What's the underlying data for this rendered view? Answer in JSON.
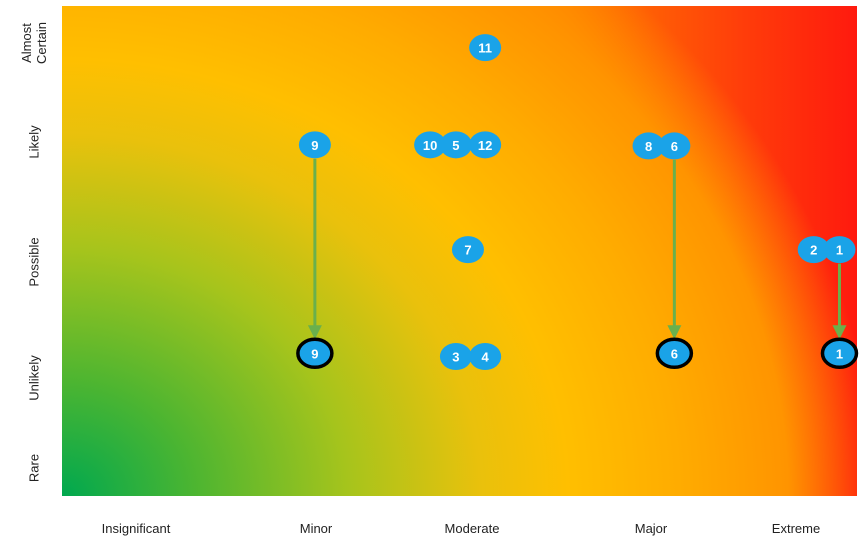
{
  "chart_data": {
    "type": "heatmap",
    "title": "",
    "xlabel": "",
    "ylabel": "",
    "x_categories": [
      "Insignificant",
      "Minor",
      "Moderate",
      "Major",
      "Extreme"
    ],
    "y_categories": [
      "Rare",
      "Unlikely",
      "Possible",
      "Likely",
      "Almost Certain"
    ],
    "y_tick_lines": {
      "Almost Certain": [
        "Almost",
        "Certain"
      ],
      "Likely": [
        "Likely"
      ],
      "Possible": [
        "Possible"
      ],
      "Unlikely": [
        "Unlikely"
      ],
      "Rare": [
        "Rare"
      ]
    },
    "gradient_colors": {
      "low_risk": "#00a84f",
      "medium_risk": "#ffbf00",
      "high_risk": "#ff1a0e"
    },
    "marker_color": "#1aa3e8",
    "residual_marker_outline": "#000000",
    "arrow_color": "#6ab04c",
    "markers": [
      {
        "label": "11",
        "x": 2.03,
        "y": 3.92
      },
      {
        "label": "10",
        "x": 1.71,
        "y": 3.02
      },
      {
        "label": "5",
        "x": 1.86,
        "y": 3.02
      },
      {
        "label": "12",
        "x": 2.03,
        "y": 3.02
      },
      {
        "label": "9",
        "x": 1.04,
        "y": 3.02
      },
      {
        "label": "8",
        "x": 2.98,
        "y": 3.01
      },
      {
        "label": "6",
        "x": 3.13,
        "y": 3.01
      },
      {
        "label": "7",
        "x": 1.93,
        "y": 2.05
      },
      {
        "label": "2",
        "x": 3.94,
        "y": 2.05
      },
      {
        "label": "1",
        "x": 4.09,
        "y": 2.05
      },
      {
        "label": "3",
        "x": 1.86,
        "y": 1.06
      },
      {
        "label": "4",
        "x": 2.03,
        "y": 1.06
      },
      {
        "label": "9",
        "x": 1.04,
        "y": 1.09,
        "residual": true
      },
      {
        "label": "6",
        "x": 3.13,
        "y": 1.09,
        "residual": true
      },
      {
        "label": "1",
        "x": 4.09,
        "y": 1.09,
        "residual": true
      }
    ],
    "arrows": [
      {
        "from": [
          1.04,
          3.02
        ],
        "to": [
          1.04,
          1.09
        ]
      },
      {
        "from": [
          3.13,
          3.01
        ],
        "to": [
          3.13,
          1.09
        ]
      },
      {
        "from": [
          4.09,
          2.05
        ],
        "to": [
          4.09,
          1.09
        ]
      }
    ]
  }
}
